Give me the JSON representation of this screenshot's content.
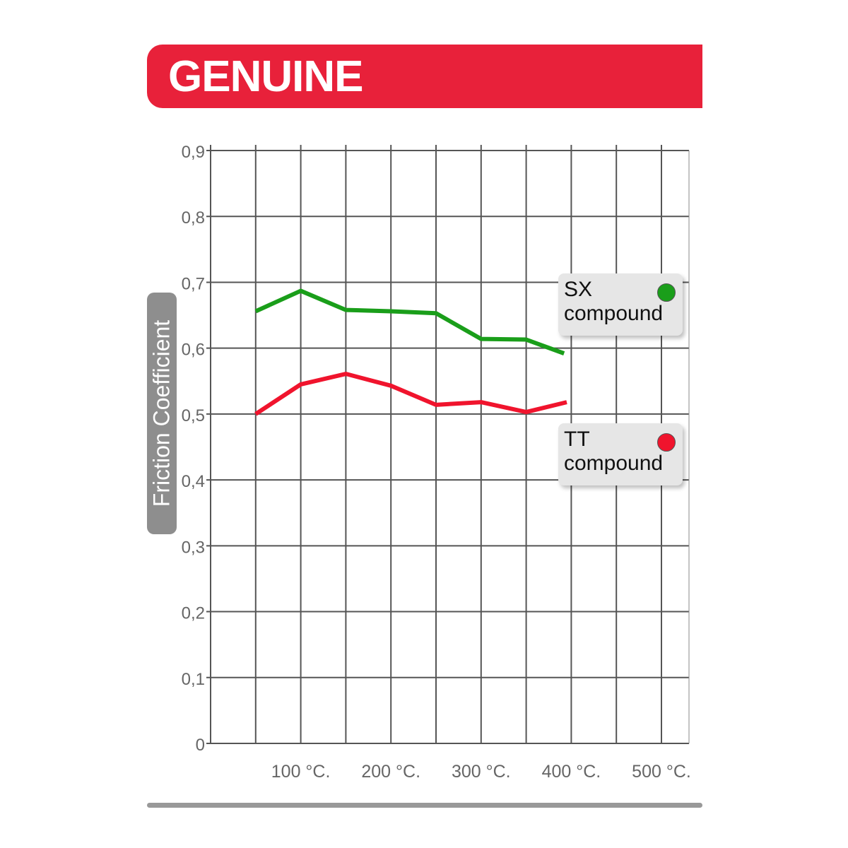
{
  "chart_data": {
    "type": "line",
    "title": "GENUINE",
    "xlabel": "",
    "ylabel": "Friction Coefficient",
    "xlim": [
      0,
      550
    ],
    "ylim": [
      0,
      0.9
    ],
    "x_ticks": [
      100,
      200,
      300,
      400,
      500
    ],
    "x_tick_labels": [
      "100 °C.",
      "200 °C.",
      "300 °C.",
      "400 °C.",
      "500 °C."
    ],
    "y_ticks": [
      0,
      0.1,
      0.2,
      0.3,
      0.4,
      0.5,
      0.6,
      0.7,
      0.8,
      0.9
    ],
    "y_tick_labels": [
      "0",
      "0,1",
      "0,2",
      "0,3",
      "0,4",
      "0,5",
      "0,6",
      "0,7",
      "0,8",
      "0,9"
    ],
    "grid": true,
    "legend_placement": "right",
    "series": [
      {
        "name": "SX compound",
        "label_line1": "SX",
        "label_line2": "compound",
        "color": "#1a9e1a",
        "x": [
          50,
          100,
          150,
          200,
          250,
          300,
          350,
          392
        ],
        "y": [
          0.656,
          0.687,
          0.658,
          0.656,
          0.653,
          0.614,
          0.613,
          0.592
        ]
      },
      {
        "name": "TT compound",
        "label_line1": "TT",
        "label_line2": "compound",
        "color": "#f0142d",
        "x": [
          50,
          100,
          150,
          200,
          250,
          300,
          350,
          395
        ],
        "y": [
          0.5,
          0.545,
          0.561,
          0.543,
          0.514,
          0.518,
          0.503,
          0.518
        ]
      }
    ]
  },
  "colors": {
    "banner": "#e8213a",
    "grid": "#555555",
    "ylabel_bg": "#8e8e8e"
  }
}
